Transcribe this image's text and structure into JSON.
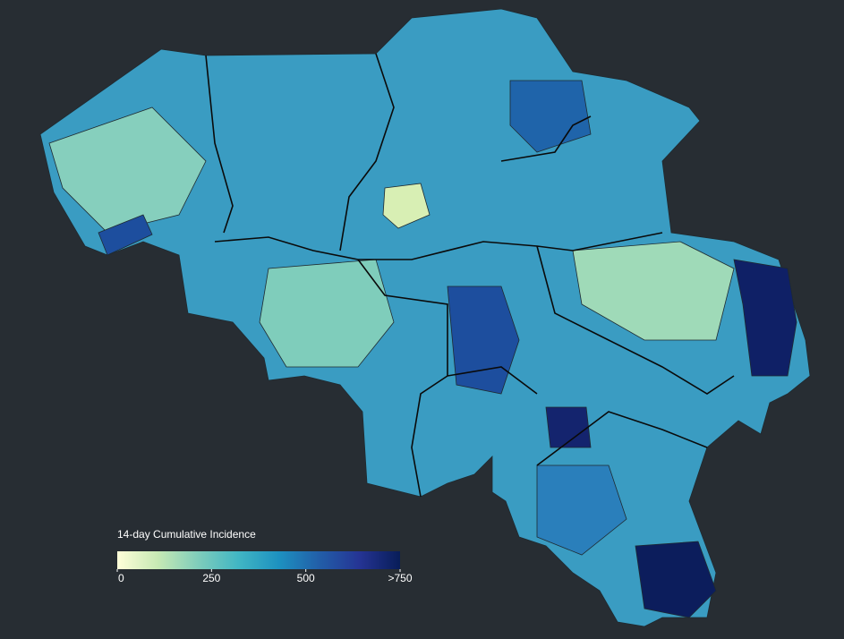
{
  "legend": {
    "title": "14-day Cumulative Incidence",
    "range": [
      0,
      750
    ],
    "ticks": [
      0,
      250,
      500,
      {
        "value": 750,
        "label": ">750"
      }
    ],
    "colors": [
      "#ffffd9",
      "#c7e9b4",
      "#7fcdbb",
      "#41b6c4",
      "#1d91c0",
      "#225ea8",
      "#253494",
      "#081d58"
    ]
  }
}
